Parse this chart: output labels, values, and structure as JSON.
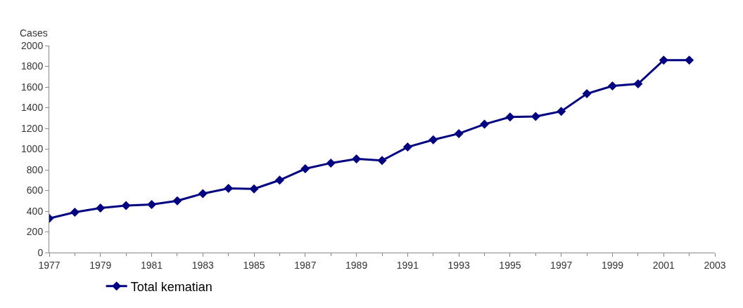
{
  "chart_data": {
    "type": "line",
    "ylabel": "Cases",
    "x": [
      1977,
      1978,
      1979,
      1980,
      1981,
      1982,
      1983,
      1984,
      1985,
      1986,
      1987,
      1988,
      1989,
      1990,
      1991,
      1992,
      1993,
      1994,
      1995,
      1996,
      1997,
      1998,
      1999,
      2000,
      2001,
      2002
    ],
    "series": [
      {
        "name": "Total kematian",
        "color": "#000080",
        "values": [
          330,
          390,
          430,
          455,
          465,
          500,
          570,
          620,
          615,
          700,
          810,
          865,
          905,
          890,
          1020,
          1090,
          1150,
          1240,
          1310,
          1315,
          1365,
          1535,
          1610,
          1630,
          1860,
          1860
        ]
      }
    ],
    "xlim": [
      1977,
      2003
    ],
    "xticks": [
      1977,
      1979,
      1981,
      1983,
      1985,
      1987,
      1989,
      1991,
      1993,
      1995,
      1997,
      1999,
      2001,
      2003
    ],
    "ylim": [
      0,
      2000
    ],
    "yticks": [
      0,
      200,
      400,
      600,
      800,
      1000,
      1200,
      1400,
      1600,
      1800,
      2000
    ],
    "legend": "bottom",
    "marker": "diamond",
    "line_style": "solid"
  }
}
